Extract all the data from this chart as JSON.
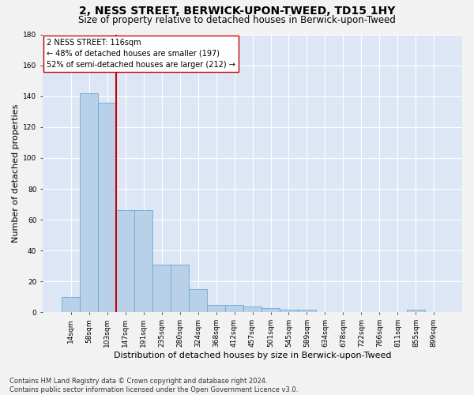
{
  "title": "2, NESS STREET, BERWICK-UPON-TWEED, TD15 1HY",
  "subtitle": "Size of property relative to detached houses in Berwick-upon-Tweed",
  "xlabel": "Distribution of detached houses by size in Berwick-upon-Tweed",
  "ylabel": "Number of detached properties",
  "categories": [
    "14sqm",
    "58sqm",
    "103sqm",
    "147sqm",
    "191sqm",
    "235sqm",
    "280sqm",
    "324sqm",
    "368sqm",
    "412sqm",
    "457sqm",
    "501sqm",
    "545sqm",
    "589sqm",
    "634sqm",
    "678sqm",
    "722sqm",
    "766sqm",
    "811sqm",
    "855sqm",
    "899sqm"
  ],
  "values": [
    10,
    142,
    136,
    66,
    66,
    31,
    31,
    15,
    5,
    5,
    4,
    3,
    2,
    2,
    0,
    0,
    0,
    0,
    0,
    2,
    0
  ],
  "bar_color": "#b8d0e8",
  "bar_edge_color": "#6aaad4",
  "vline_x": 2.5,
  "vline_color": "#cc0000",
  "annotation_line1": "2 NESS STREET: 116sqm",
  "annotation_line2": "← 48% of detached houses are smaller (197)",
  "annotation_line3": "52% of semi-detached houses are larger (212) →",
  "annotation_box_facecolor": "#ffffff",
  "annotation_box_edgecolor": "#cc0000",
  "ylim": [
    0,
    180
  ],
  "yticks": [
    0,
    20,
    40,
    60,
    80,
    100,
    120,
    140,
    160,
    180
  ],
  "plot_bg_color": "#dce6f5",
  "grid_color": "#ffffff",
  "fig_bg_color": "#f2f2f2",
  "title_fontsize": 10,
  "subtitle_fontsize": 8.5,
  "xlabel_fontsize": 8,
  "ylabel_fontsize": 8,
  "tick_fontsize": 6.5,
  "annot_fontsize": 7,
  "footer_fontsize": 6,
  "footer_line1": "Contains HM Land Registry data © Crown copyright and database right 2024.",
  "footer_line2": "Contains public sector information licensed under the Open Government Licence v3.0."
}
